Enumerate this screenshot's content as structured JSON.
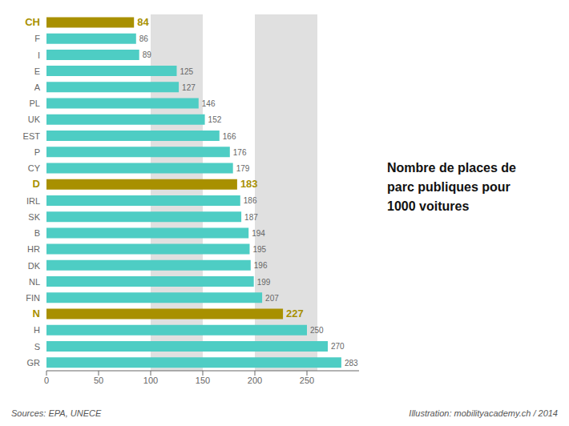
{
  "chart_data": {
    "type": "bar",
    "orientation": "horizontal",
    "categories": [
      "GR",
      "S",
      "H",
      "N",
      "FIN",
      "NL",
      "DK",
      "HR",
      "B",
      "SK",
      "IRL",
      "D",
      "CY",
      "P",
      "EST",
      "UK",
      "PL",
      "A",
      "E",
      "I",
      "F",
      "CH"
    ],
    "values": [
      283,
      270,
      250,
      227,
      207,
      199,
      196,
      195,
      194,
      187,
      186,
      183,
      179,
      176,
      166,
      152,
      146,
      127,
      125,
      89,
      86,
      84
    ],
    "colors": [
      "#4ecdc4",
      "#4ecdc4",
      "#4ecdc4",
      "#a89000",
      "#4ecdc4",
      "#4ecdc4",
      "#4ecdc4",
      "#4ecdc4",
      "#4ecdc4",
      "#4ecdc4",
      "#4ecdc4",
      "#a89000",
      "#4ecdc4",
      "#4ecdc4",
      "#4ecdc4",
      "#4ecdc4",
      "#4ecdc4",
      "#4ecdc4",
      "#4ecdc4",
      "#4ecdc4",
      "#4ecdc4",
      "#a89000"
    ],
    "shade_regions": [
      [
        100,
        150
      ],
      [
        200,
        260
      ]
    ],
    "xlim": [
      0,
      300
    ],
    "xticks": [
      0,
      50,
      100,
      150,
      200,
      250
    ],
    "data_labels": true,
    "grid": false,
    "annotations": [
      "Nombre de places de\nparc publiques pour\n1000 voitures",
      "Sources:  EPA, UNECE",
      "Illustration:  mobilityacademy.ch / 2014"
    ]
  }
}
